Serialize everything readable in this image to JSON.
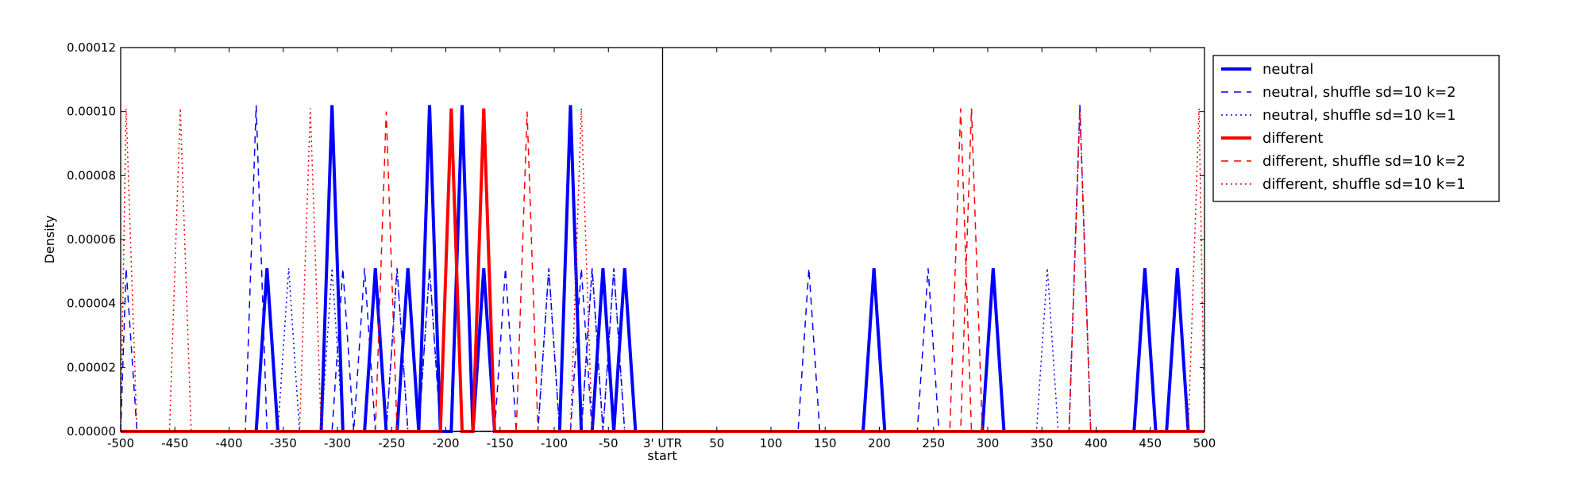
{
  "chart_data": {
    "type": "line",
    "xlabel": "start",
    "ylabel": "Density",
    "xlim": [
      -500,
      500
    ],
    "ylim": [
      0,
      0.00012
    ],
    "x_tick_values": [
      -500,
      -450,
      -400,
      -350,
      -300,
      -250,
      -200,
      -150,
      -100,
      -50,
      0,
      50,
      100,
      150,
      200,
      250,
      300,
      350,
      400,
      450,
      500
    ],
    "x_tick_labels": [
      "-500",
      "-450",
      "-400",
      "-350",
      "-300",
      "-250",
      "-200",
      "-150",
      "-100",
      "-50",
      "3' UTR",
      "50",
      "100",
      "150",
      "200",
      "250",
      "300",
      "350",
      "400",
      "450",
      "500"
    ],
    "y_tick_values": [
      0,
      2e-05,
      4e-05,
      6e-05,
      8e-05,
      0.0001,
      0.00012
    ],
    "y_tick_labels": [
      "0.00000",
      "0.00002",
      "0.00004",
      "0.00006",
      "0.00008",
      "0.00010",
      "0.00012"
    ],
    "divider_x": 0,
    "grid": false,
    "legend_position": "outside-right-top",
    "series": [
      {
        "name": "neutral",
        "color": "#0000ff",
        "style": "solid",
        "width": 4,
        "peaks": [
          [
            -365,
            5.1e-05
          ],
          [
            -305,
            0.000102
          ],
          [
            -265,
            5.1e-05
          ],
          [
            -235,
            5.1e-05
          ],
          [
            -215,
            0.000102
          ],
          [
            -185,
            0.000102
          ],
          [
            -165,
            5.1e-05
          ],
          [
            -85,
            0.000102
          ],
          [
            -55,
            5.1e-05
          ],
          [
            -35,
            5.1e-05
          ],
          [
            195,
            5.1e-05
          ],
          [
            305,
            5.1e-05
          ],
          [
            445,
            5.1e-05
          ],
          [
            475,
            5.1e-05
          ]
        ]
      },
      {
        "name": "neutral, shuffle sd=10 k=2",
        "color": "#0000ff",
        "style": "dashed",
        "width": 1.5,
        "peaks": [
          [
            -495,
            5.1e-05
          ],
          [
            -375,
            0.000102
          ],
          [
            -295,
            5.1e-05
          ],
          [
            -275,
            5.1e-05
          ],
          [
            -245,
            5.1e-05
          ],
          [
            -215,
            5.1e-05
          ],
          [
            -145,
            5.1e-05
          ],
          [
            -105,
            5.1e-05
          ],
          [
            -75,
            5.1e-05
          ],
          [
            -65,
            5.1e-05
          ],
          [
            -45,
            5.1e-05
          ],
          [
            135,
            5.1e-05
          ],
          [
            245,
            5.1e-05
          ],
          [
            385,
            0.000102
          ]
        ]
      },
      {
        "name": "neutral, shuffle sd=10 k=1",
        "color": "#0000ff",
        "style": "dotted",
        "width": 1.5,
        "peaks": [
          [
            -345,
            5.1e-05
          ],
          [
            -305,
            5.1e-05
          ],
          [
            -245,
            5.1e-05
          ],
          [
            -215,
            5.1e-05
          ],
          [
            -105,
            5.1e-05
          ],
          [
            -65,
            5.1e-05
          ],
          [
            -45,
            5.1e-05
          ],
          [
            355,
            5.1e-05
          ],
          [
            385,
            0.000102
          ]
        ]
      },
      {
        "name": "different",
        "color": "#ff0000",
        "style": "solid",
        "width": 4,
        "peaks": [
          [
            -195,
            0.000101
          ],
          [
            -165,
            0.000101
          ]
        ]
      },
      {
        "name": "different, shuffle sd=10 k=2",
        "color": "#ff0000",
        "style": "dashed",
        "width": 1.5,
        "peaks": [
          [
            -255,
            0.0001
          ],
          [
            -125,
            0.0001
          ],
          [
            275,
            0.000101
          ],
          [
            285,
            0.000101
          ],
          [
            385,
            0.0001
          ]
        ]
      },
      {
        "name": "different, shuffle sd=10 k=1",
        "color": "#ff0000",
        "style": "dotted",
        "width": 1.5,
        "peaks": [
          [
            -495,
            0.000101
          ],
          [
            -445,
            0.000101
          ],
          [
            -325,
            0.000101
          ],
          [
            -75,
            0.000101
          ],
          [
            495,
            0.000101
          ]
        ]
      }
    ]
  }
}
